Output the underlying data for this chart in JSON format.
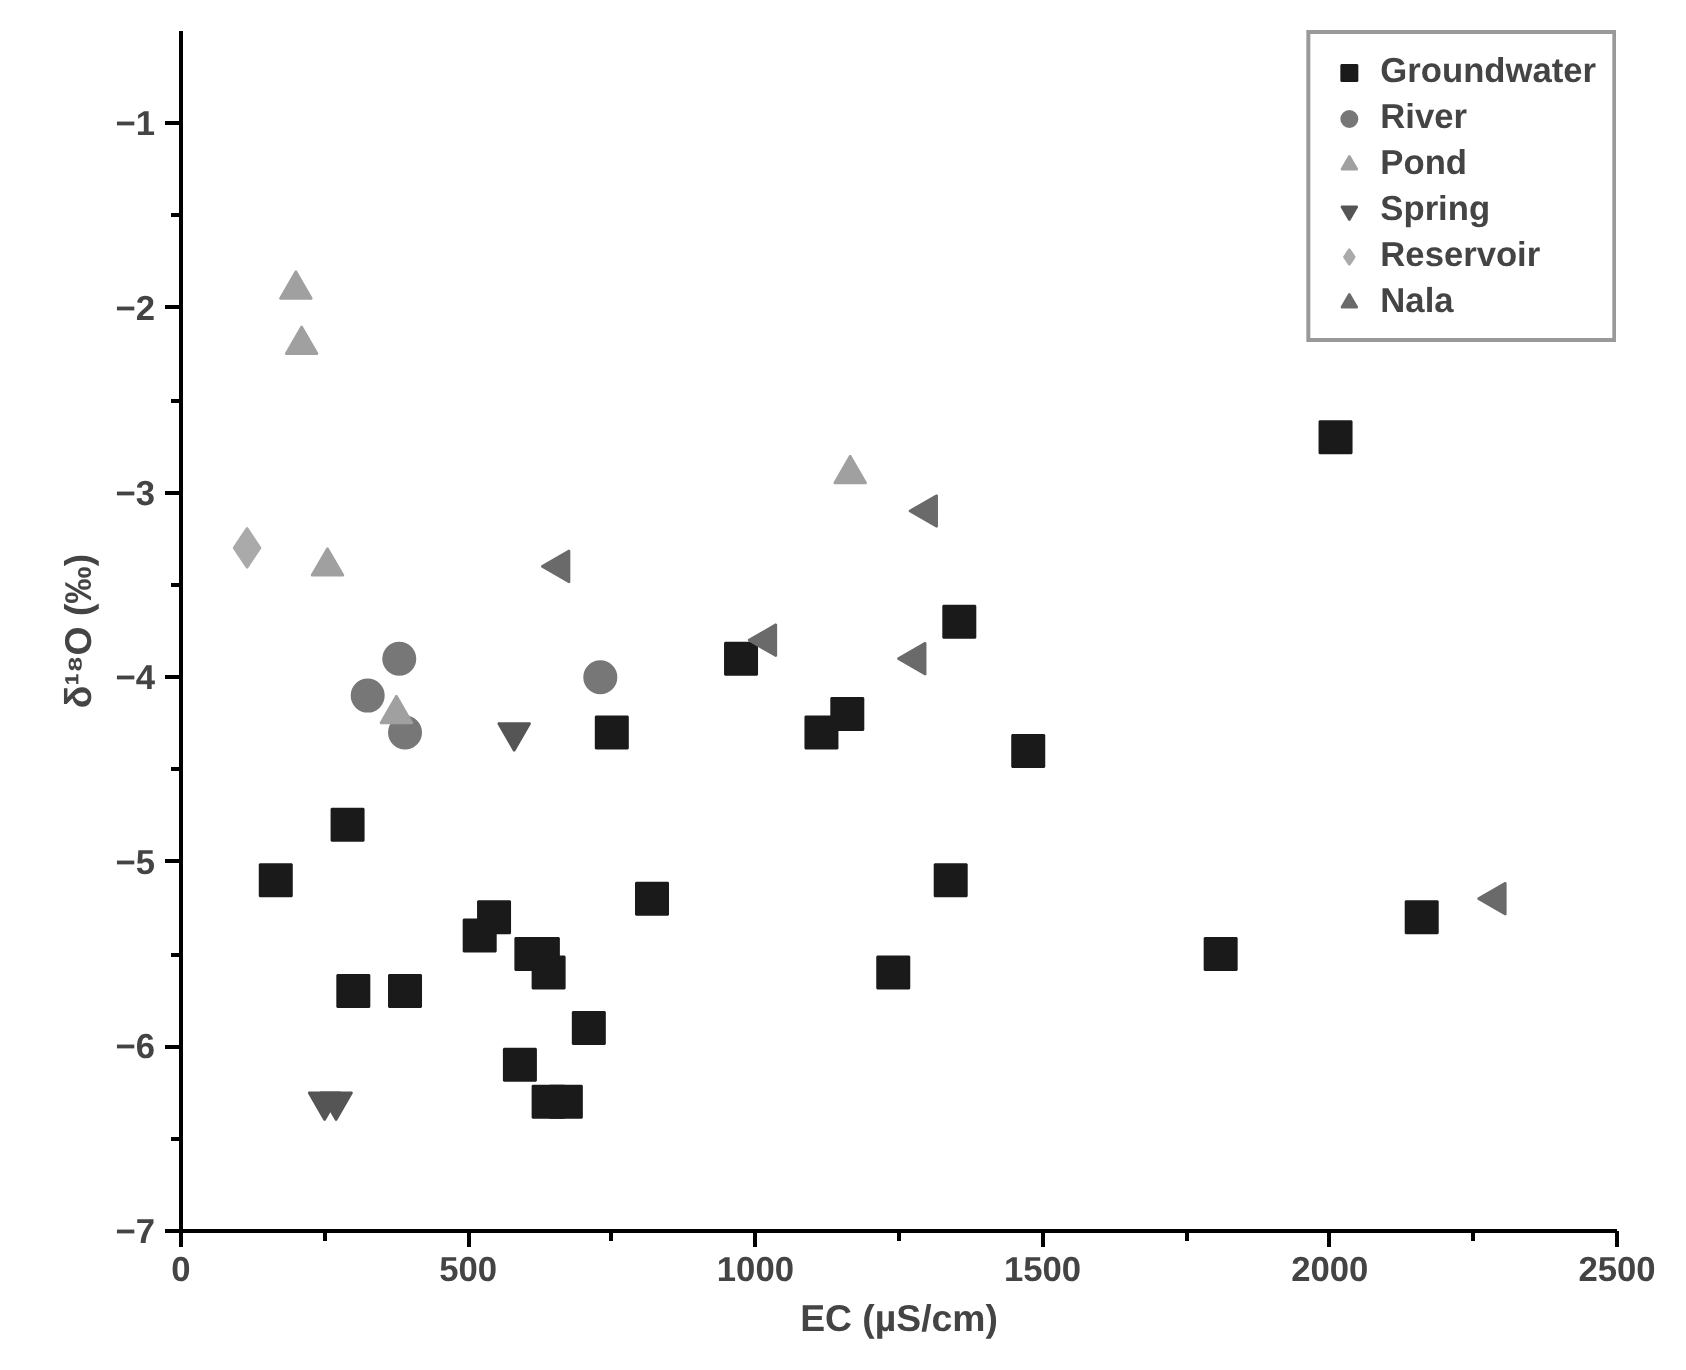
{
  "chart_data": {
    "type": "scatter",
    "xlabel": "EC (µS/cm)",
    "ylabel": "δ¹⁸O (‰)",
    "xlim": [
      0,
      2500
    ],
    "ylim": [
      -7,
      -0.5
    ],
    "xticks": [
      0,
      500,
      1000,
      1500,
      2000,
      2500
    ],
    "yticks": [
      -7,
      -6,
      -5,
      -4,
      -3,
      -2,
      -1
    ],
    "grid": false,
    "legend": "top right",
    "series": [
      {
        "name": "Groundwater",
        "color": "#1a1a1a",
        "marker": "square",
        "x": [
          165,
          290,
          300,
          390,
          520,
          545,
          590,
          610,
          630,
          640,
          640,
          670,
          710,
          750,
          820,
          975,
          1115,
          1160,
          1240,
          1340,
          1355,
          1475,
          1810,
          2010,
          2160
        ],
        "values": [
          -5.1,
          -4.8,
          -5.7,
          -5.7,
          -5.4,
          -5.3,
          -6.1,
          -5.5,
          -5.5,
          -5.6,
          -6.3,
          -6.3,
          -5.9,
          -4.3,
          -5.2,
          -3.9,
          -4.3,
          -4.2,
          -5.6,
          -5.1,
          -3.7,
          -4.4,
          -5.5,
          -2.7,
          -5.3
        ]
      },
      {
        "name": "River",
        "color": "#777777",
        "marker": "circle",
        "x": [
          325,
          380,
          390,
          730
        ],
        "values": [
          -4.1,
          -3.9,
          -4.3,
          -4.0
        ]
      },
      {
        "name": "Pond",
        "color": "#a0a0a0",
        "marker": "triangle",
        "x": [
          200,
          210,
          255,
          375,
          1165
        ],
        "values": [
          -1.9,
          -2.2,
          -3.4,
          -4.2,
          -2.9
        ]
      },
      {
        "name": "Spring",
        "color": "#555555",
        "marker": "triangle_down",
        "x": [
          250,
          270,
          580
        ],
        "values": [
          -6.3,
          -6.3,
          -4.3
        ]
      },
      {
        "name": "Reservoir",
        "color": "#aaaaaa",
        "marker": "diamond",
        "x": [
          115
        ],
        "values": [
          -3.3
        ]
      },
      {
        "name": "Nala",
        "color": "#6a6a6a",
        "marker": "triangle_left",
        "x": [
          660,
          1020,
          1280,
          1300,
          2290
        ],
        "values": [
          -3.4,
          -3.8,
          -3.9,
          -3.1,
          -5.2
        ]
      }
    ]
  }
}
